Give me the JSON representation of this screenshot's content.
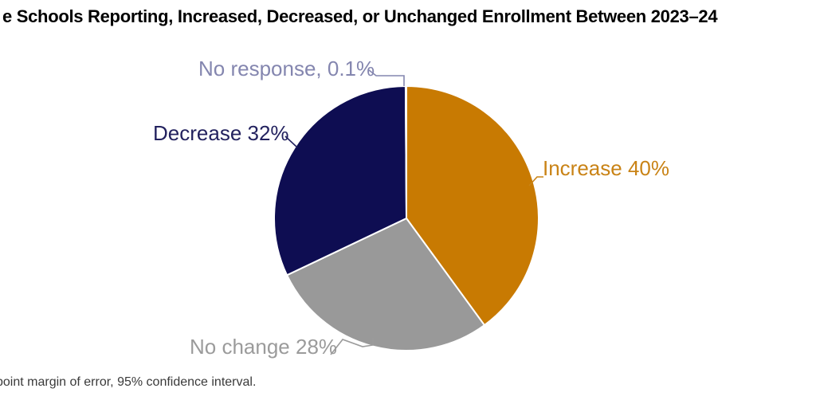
{
  "title": "e Schools Reporting, Increased, Decreased, or Unchanged Enrollment Between 2023–24",
  "footnote": "point margin of error, 95% confidence interval.",
  "chart_data": {
    "type": "pie",
    "title": "e Schools Reporting, Increased, Decreased, or Unchanged Enrollment Between 2023–24",
    "start_angle_deg": 0,
    "direction": "clockwise",
    "legend": "none",
    "data_labels": "outside-with-leader-lines",
    "slice_border_color": "#ffffff",
    "slices": [
      {
        "id": "increase",
        "label": "Increase",
        "value": 40,
        "display": "Increase 40%",
        "color": "#C87A02",
        "label_color": "#C98316"
      },
      {
        "id": "no-change",
        "label": "No change",
        "value": 28,
        "display": "No change 28%",
        "color": "#999999",
        "label_color": "#9B9B9B"
      },
      {
        "id": "decrease",
        "label": "Decrease",
        "value": 32,
        "display": "Decrease 32%",
        "color": "#0E0D52",
        "label_color": "#23225F"
      },
      {
        "id": "no-response",
        "label": "No response",
        "value": 0.1,
        "display": "No response, 0.1%",
        "color": "#8486AF",
        "label_color": "#8486AF"
      }
    ]
  }
}
